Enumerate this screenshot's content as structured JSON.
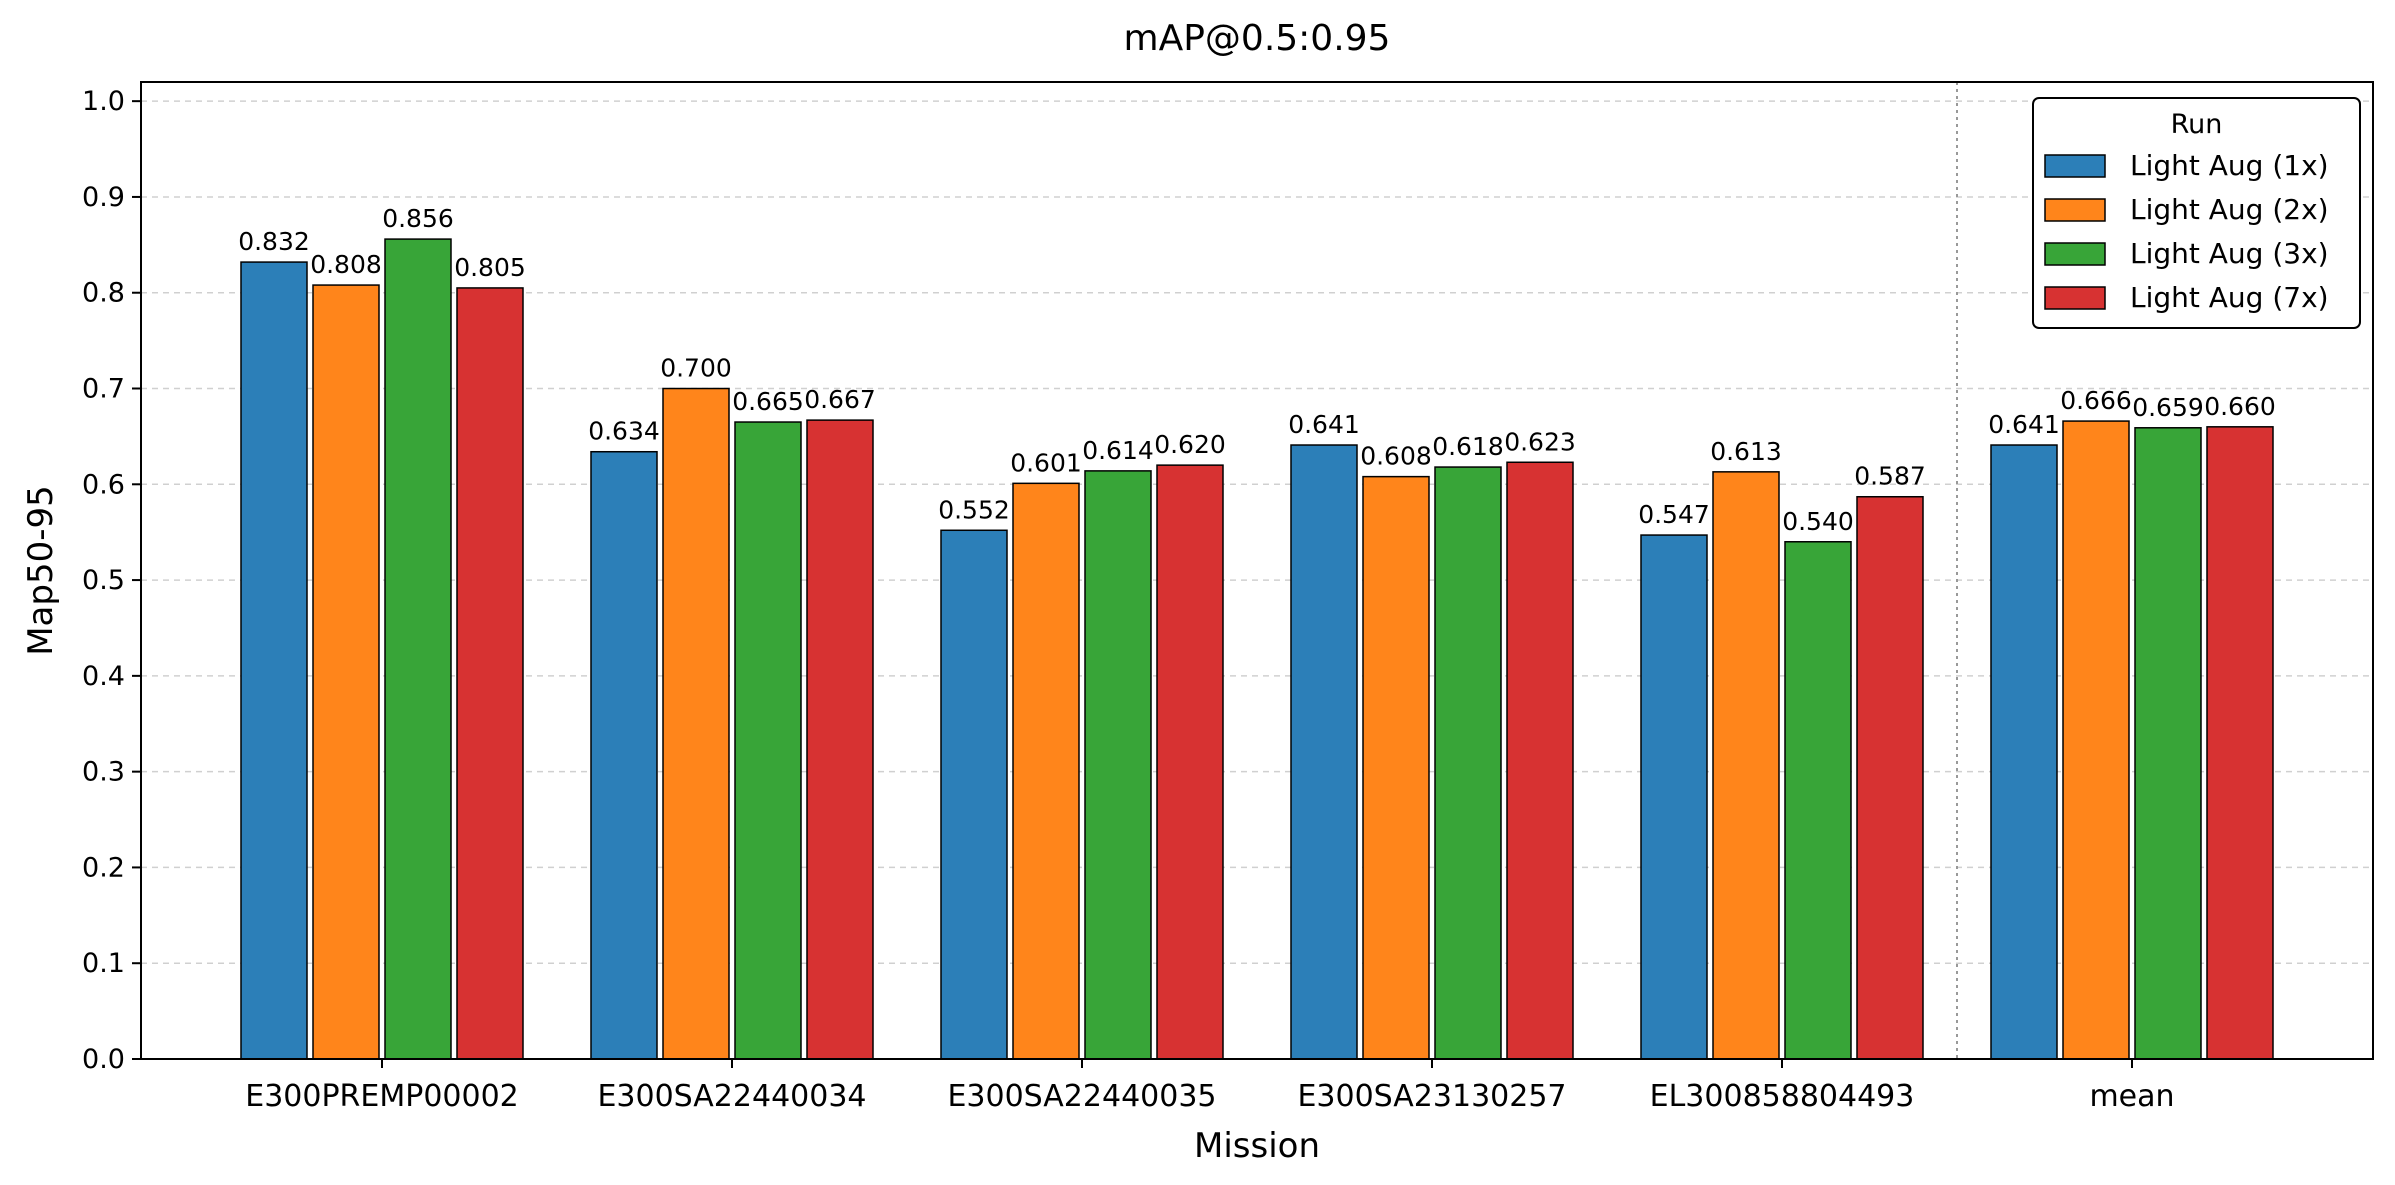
{
  "chart_data": {
    "type": "bar",
    "title": "mAP@0.5:0.95",
    "xlabel": "Mission",
    "ylabel": "Map50-95",
    "ylim": [
      0.0,
      1.02
    ],
    "yticks": [
      "0.0",
      "0.1",
      "0.2",
      "0.3",
      "0.4",
      "0.5",
      "0.6",
      "0.7",
      "0.8",
      "0.9",
      "1.0"
    ],
    "grid": true,
    "legend": {
      "title": "Run",
      "placement": "top-right"
    },
    "categories": [
      "E300PREMP00002",
      "E300SA22440034",
      "E300SA22440035",
      "E300SA23130257",
      "EL300858804493",
      "mean"
    ],
    "series": [
      {
        "name": "Light Aug (1x)",
        "color": "#2c7fb8",
        "values": [
          0.832,
          0.634,
          0.552,
          0.641,
          0.547,
          0.641
        ],
        "labels": [
          "0.832",
          "0.634",
          "0.552",
          "0.641",
          "0.547",
          "0.641"
        ]
      },
      {
        "name": "Light Aug (2x)",
        "color": "#ff851b",
        "values": [
          0.808,
          0.7,
          0.601,
          0.608,
          0.613,
          0.666
        ],
        "labels": [
          "0.808",
          "0.700",
          "0.601",
          "0.608",
          "0.613",
          "0.666"
        ]
      },
      {
        "name": "Light Aug (3x)",
        "color": "#38a538",
        "values": [
          0.856,
          0.665,
          0.614,
          0.618,
          0.54,
          0.659
        ],
        "labels": [
          "0.856",
          "0.665",
          "0.614",
          "0.618",
          "0.540",
          "0.659"
        ]
      },
      {
        "name": "Light Aug (7x)",
        "color": "#d73232",
        "values": [
          0.805,
          0.667,
          0.62,
          0.623,
          0.587,
          0.66
        ],
        "labels": [
          "0.805",
          "0.667",
          "0.620",
          "0.623",
          "0.587",
          "0.660"
        ]
      }
    ],
    "separator_before": "mean"
  }
}
